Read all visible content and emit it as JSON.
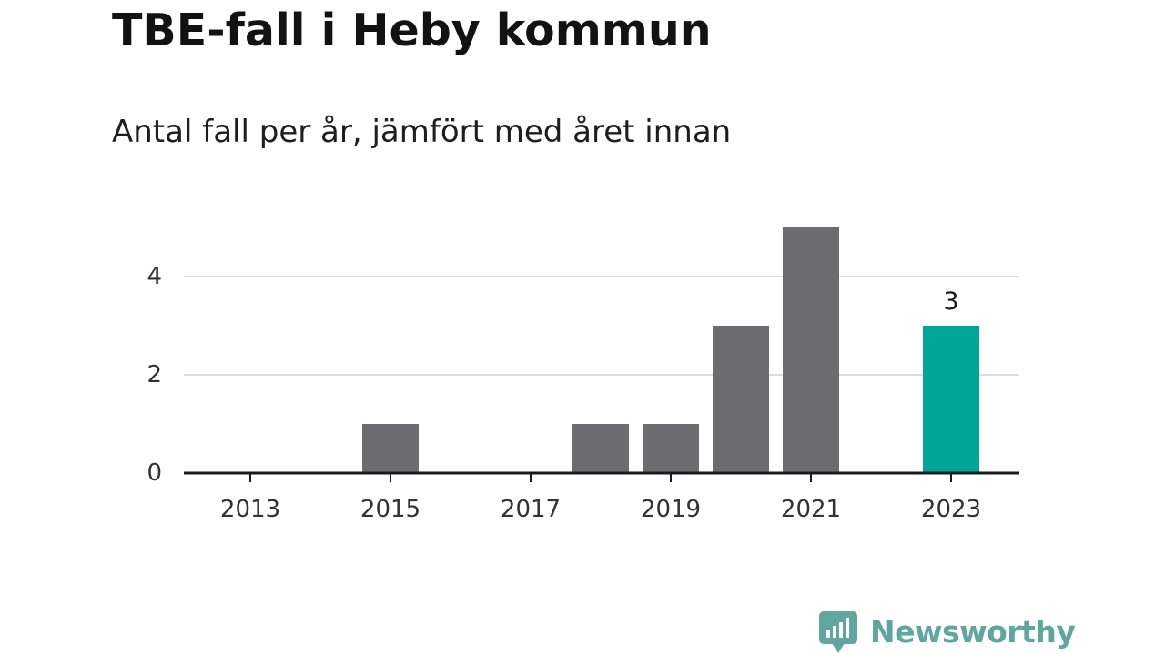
{
  "header": {
    "title": "TBE-fall i Heby kommun",
    "subtitle": "Antal fall per år, jämfört med året innan"
  },
  "chart_data": {
    "type": "bar",
    "title": "TBE-fall i Heby kommun",
    "subtitle": "Antal fall per år, jämfört med året innan",
    "categories": [
      "2013",
      "2014",
      "2015",
      "2016",
      "2017",
      "2018",
      "2019",
      "2020",
      "2021",
      "2022",
      "2023"
    ],
    "values": [
      0,
      0,
      1,
      0,
      0,
      1,
      1,
      3,
      5,
      0,
      3
    ],
    "x_tick_labels": [
      "2013",
      "2015",
      "2017",
      "2019",
      "2021",
      "2023"
    ],
    "y_ticks": [
      0,
      2,
      4
    ],
    "ylim": [
      0,
      5
    ],
    "xlabel": "",
    "ylabel": "",
    "grid": true,
    "highlight": {
      "category": "2023",
      "label": "3"
    },
    "colors": {
      "bar": "#6d6c71",
      "highlight": "#00a698",
      "grid": "#dddddd",
      "axis": "#1a1a1a"
    }
  },
  "brand": {
    "name": "Newsworthy",
    "logo_icon": "bar-chart-speech-bubble-icon",
    "color": "#5fa6a0"
  }
}
